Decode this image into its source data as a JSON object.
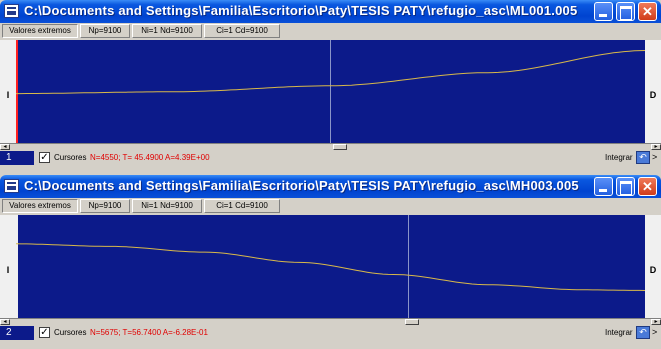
{
  "windows": [
    {
      "title": "C:\\Documents and Settings\\Familia\\Escritorio\\Paty\\TESIS PATY\\refugio_asc\\ML001.005",
      "toolbar": {
        "valores": "Valores extremos",
        "np": "Np=9100",
        "ni_nd": "Ni=1 Nd=9100",
        "ci_cd": "Ci=1 Cd=9100"
      },
      "left_label": "I",
      "right_label": "D",
      "number": "1",
      "cursores_label": "Cursores",
      "cursor_values": "N=4550; T= 45.4900  A=4.39E+00",
      "integrar": "Integrar",
      "curve": {
        "color": "#d8b84a",
        "points": [
          [
            0,
            0.0
          ],
          [
            0.25,
            0.03
          ],
          [
            0.5,
            0.13
          ],
          [
            0.75,
            0.35
          ],
          [
            1.0,
            0.72
          ]
        ]
      },
      "cursor_fraction": 0.5,
      "left_marker_color": "#ff2020"
    },
    {
      "title": "C:\\Documents and Settings\\Familia\\Escritorio\\Paty\\TESIS PATY\\refugio_asc\\MH003.005",
      "toolbar": {
        "valores": "Valores extremos",
        "np": "Np=9100",
        "ni_nd": "Ni=1 Nd=9100",
        "ci_cd": "Ci=1 Cd=9100"
      },
      "left_label": "I",
      "right_label": "D",
      "number": "2",
      "cursores_label": "Cursores",
      "cursor_values": "N=5675; T=56.7400  A=-6.28E-01",
      "integrar": "Integrar",
      "curve": {
        "color": "#d8b84a",
        "points": [
          [
            0,
            0.0
          ],
          [
            0.15,
            -0.04
          ],
          [
            0.3,
            -0.13
          ],
          [
            0.45,
            -0.29
          ],
          [
            0.6,
            -0.48
          ],
          [
            0.75,
            -0.64
          ],
          [
            0.9,
            -0.72
          ],
          [
            1.0,
            -0.73
          ]
        ]
      },
      "cursor_fraction": 0.624,
      "left_marker_color": "#f0f0f0"
    }
  ]
}
